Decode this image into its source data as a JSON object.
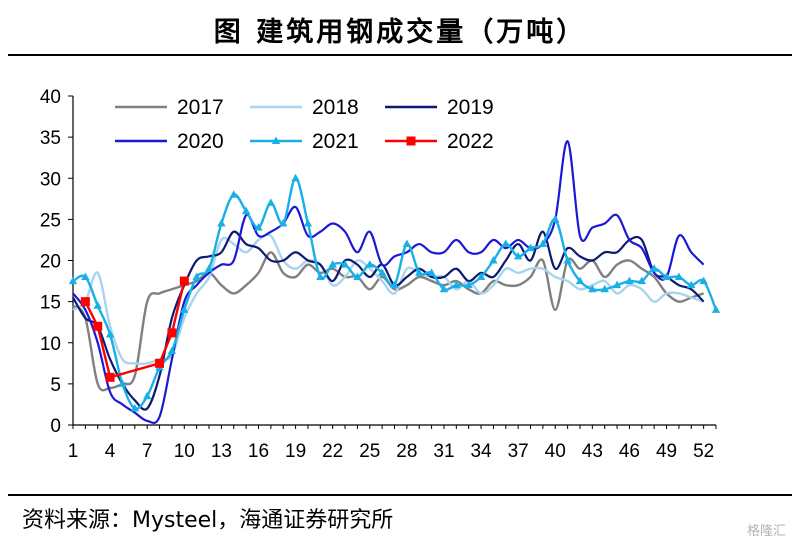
{
  "title": "图  建筑用钢成交量（万吨）",
  "source": "资料来源：Mysteel，海通证券研究所",
  "watermark": "格隆汇",
  "chart_data": {
    "type": "line",
    "title": "图  建筑用钢成交量（万吨）",
    "xlabel": "",
    "ylabel": "",
    "xlim": [
      1,
      53
    ],
    "ylim": [
      0,
      40
    ],
    "x_ticks": [
      1,
      4,
      7,
      10,
      13,
      16,
      19,
      22,
      25,
      28,
      31,
      34,
      37,
      40,
      43,
      46,
      49,
      52
    ],
    "y_ticks": [
      0,
      5,
      10,
      15,
      20,
      25,
      30,
      35,
      40
    ],
    "grid": false,
    "legend": "top-left",
    "series": [
      {
        "name": "2017",
        "color": "#808080",
        "marker": "none",
        "values": [
          14.5,
          13.0,
          5.0,
          4.5,
          5.0,
          6.0,
          15.0,
          16.0,
          16.5,
          17.0,
          17.5,
          18.5,
          17.0,
          16.0,
          17.0,
          18.5,
          21.0,
          18.5,
          18.0,
          19.5,
          18.5,
          19.0,
          18.0,
          18.0,
          16.5,
          18.0,
          16.5,
          17.0,
          18.0,
          17.5,
          17.0,
          17.5,
          16.5,
          16.0,
          17.5,
          17.0,
          17.0,
          18.0,
          20.0,
          14.0,
          20.0,
          19.0,
          20.0,
          18.0,
          19.5,
          20.0,
          19.0,
          18.0,
          16.0,
          15.0,
          15.5,
          16.0
        ]
      },
      {
        "name": "2018",
        "color": "#a9d4f0",
        "marker": "none",
        "values": [
          14.0,
          15.0,
          18.5,
          12.0,
          8.0,
          7.5,
          7.5,
          8.0,
          8.5,
          13.0,
          16.0,
          18.0,
          22.5,
          22.0,
          21.0,
          22.5,
          23.0,
          20.0,
          19.0,
          20.0,
          19.5,
          17.0,
          18.0,
          20.0,
          19.0,
          17.5,
          16.0,
          19.0,
          18.5,
          18.0,
          18.0,
          16.5,
          17.5,
          16.0,
          17.0,
          19.0,
          18.5,
          19.0,
          19.0,
          18.0,
          17.5,
          16.5,
          17.0,
          17.5,
          16.0,
          17.0,
          16.5,
          15.0,
          16.0,
          16.0,
          15.5,
          15.0
        ]
      },
      {
        "name": "2019",
        "color": "#0c1a72",
        "marker": "none",
        "values": [
          15.5,
          13.0,
          12.0,
          8.0,
          5.0,
          3.0,
          2.0,
          6.0,
          13.0,
          17.0,
          20.0,
          20.5,
          21.0,
          23.5,
          22.0,
          21.5,
          20.0,
          20.0,
          21.0,
          20.0,
          19.5,
          17.5,
          20.0,
          19.5,
          18.0,
          19.5,
          17.0,
          18.0,
          19.0,
          18.0,
          18.0,
          19.0,
          17.5,
          18.5,
          18.0,
          20.0,
          22.0,
          20.0,
          23.5,
          19.0,
          21.5,
          20.5,
          20.0,
          21.0,
          21.0,
          22.5,
          22.5,
          18.5,
          18.0,
          17.0,
          16.5,
          15.0
        ]
      },
      {
        "name": "2020",
        "color": "#1a1ad6",
        "marker": "none",
        "values": [
          16.0,
          14.0,
          10.0,
          4.0,
          2.5,
          1.5,
          0.5,
          1.0,
          8.0,
          15.0,
          17.0,
          18.5,
          19.5,
          20.0,
          25.5,
          23.0,
          23.5,
          24.5,
          26.5,
          23.0,
          23.5,
          24.5,
          23.5,
          21.0,
          23.5,
          19.5,
          20.5,
          21.0,
          22.0,
          21.0,
          21.0,
          22.5,
          21.0,
          21.0,
          22.5,
          21.5,
          22.5,
          21.5,
          22.0,
          25.0,
          34.5,
          23.0,
          24.0,
          24.5,
          25.5,
          22.5,
          21.5,
          18.5,
          18.0,
          23.0,
          21.0,
          19.5
        ]
      },
      {
        "name": "2021",
        "color": "#19b0e6",
        "marker": "triangle",
        "values": [
          17.5,
          18.0,
          14.5,
          11.0,
          5.0,
          2.0,
          3.5,
          7.0,
          9.0,
          14.0,
          18.0,
          19.0,
          24.5,
          28.0,
          26.0,
          24.0,
          27.0,
          24.5,
          30.0,
          24.5,
          18.0,
          19.5,
          19.5,
          18.0,
          19.5,
          18.5,
          17.0,
          22.0,
          18.5,
          18.5,
          16.5,
          17.0,
          17.0,
          18.0,
          20.0,
          22.0,
          20.5,
          21.5,
          22.0,
          25.0,
          20.0,
          17.5,
          16.5,
          16.5,
          17.0,
          17.5,
          17.5,
          19.0,
          18.0,
          18.0,
          17.0,
          17.5,
          14.0
        ]
      },
      {
        "name": "2022",
        "color": "#ff0000",
        "marker": "square",
        "values": [
          null,
          15.0,
          12.0,
          5.8,
          null,
          null,
          null,
          7.5,
          11.2,
          17.5
        ]
      }
    ]
  }
}
